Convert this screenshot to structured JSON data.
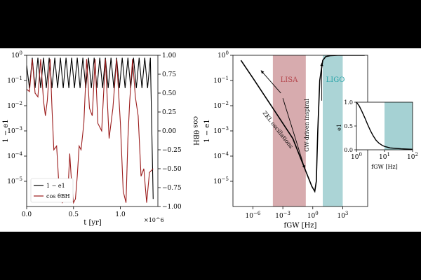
{
  "chart_data": [
    {
      "type": "line",
      "xlabel": "t [yr]",
      "x_multiplier": "×10^6",
      "ylabel_left": "1 − e1",
      "ylabel_right": "cos θBH",
      "xlim": [
        0,
        1.4
      ],
      "ylim_left_log10": [
        -6,
        0
      ],
      "ylim_right": [
        -1.0,
        1.0
      ],
      "x_ticks": [
        "0.0",
        "0.5",
        "1.0"
      ],
      "y_ticks_left": [
        "10^0",
        "10^-1",
        "10^-2",
        "10^-3",
        "10^-4",
        "10^-5"
      ],
      "y_ticks_right": [
        "1.00",
        "0.75",
        "0.50",
        "0.25",
        "0.00",
        "−0.25",
        "−0.50",
        "−0.75",
        "−1.00"
      ],
      "legend_position": "lower-left",
      "series": [
        {
          "name": "1 − e1",
          "color": "#000000",
          "axis": "left-log",
          "x": [
            0.0,
            0.03,
            0.06,
            0.09,
            0.12,
            0.15,
            0.18,
            0.21,
            0.24,
            0.27,
            0.3,
            0.33,
            0.36,
            0.39,
            0.42,
            0.45,
            0.48,
            0.51,
            0.54,
            0.57,
            0.6,
            0.63,
            0.66,
            0.69,
            0.72,
            0.75,
            0.78,
            0.81,
            0.84,
            0.87,
            0.9,
            0.93,
            0.96,
            0.99,
            1.02,
            1.05,
            1.08,
            1.11,
            1.14,
            1.17,
            1.2,
            1.23,
            1.26,
            1.29,
            1.32,
            1.35
          ],
          "log10_y": [
            -0.4,
            -1.3,
            -0.1,
            -1.3,
            -0.1,
            -1.3,
            -0.1,
            -1.3,
            -0.1,
            -1.3,
            -0.1,
            -1.3,
            -0.1,
            -1.3,
            -0.1,
            -1.3,
            -0.1,
            -1.3,
            -0.1,
            -1.3,
            -0.1,
            -1.3,
            -0.1,
            -1.3,
            -0.1,
            -1.3,
            -0.1,
            -1.3,
            -0.1,
            -1.3,
            -0.1,
            -1.3,
            -0.1,
            -1.3,
            -0.1,
            -1.3,
            -0.1,
            -1.3,
            -0.1,
            -1.3,
            -0.1,
            -1.3,
            -0.1,
            -1.3,
            -0.1,
            -5.7
          ]
        },
        {
          "name": "cos θBH",
          "color": "#9b1c1c",
          "axis": "right",
          "x": [
            0.0,
            0.03,
            0.06,
            0.09,
            0.12,
            0.15,
            0.18,
            0.2,
            0.22,
            0.25,
            0.27,
            0.29,
            0.32,
            0.35,
            0.38,
            0.41,
            0.44,
            0.46,
            0.48,
            0.5,
            0.52,
            0.54,
            0.56,
            0.58,
            0.61,
            0.64,
            0.67,
            0.7,
            0.73,
            0.76,
            0.8,
            0.84,
            0.88,
            0.92,
            0.96,
            1.0,
            1.03,
            1.06,
            1.08,
            1.1,
            1.13,
            1.16,
            1.19,
            1.22,
            1.25,
            1.28,
            1.31,
            1.35
          ],
          "y": [
            0.55,
            0.52,
            0.95,
            0.5,
            0.45,
            0.95,
            0.4,
            0.2,
            0.4,
            0.95,
            0.3,
            -0.25,
            -0.2,
            -0.85,
            -0.95,
            -0.9,
            -0.8,
            -0.3,
            -0.7,
            -0.95,
            -0.9,
            -0.6,
            -0.2,
            -0.25,
            0.1,
            0.95,
            0.3,
            0.2,
            0.95,
            0.1,
            0.0,
            0.95,
            -0.1,
            0.3,
            0.95,
            0.1,
            -0.8,
            -0.95,
            -0.1,
            0.4,
            0.95,
            0.45,
            0.2,
            -0.6,
            -0.5,
            -0.95,
            -0.55,
            -0.5
          ]
        }
      ]
    },
    {
      "type": "line",
      "xlabel": "fGW [Hz]",
      "ylabel": "1 − e1",
      "xlim_log10": [
        -8,
        5.5
      ],
      "ylim_log10": [
        -6,
        0
      ],
      "x_ticks": [
        "10^-6",
        "10^-3",
        "10^0",
        "10^3"
      ],
      "y_ticks": [
        "10^0",
        "10^-1",
        "10^-2",
        "10^-3",
        "10^-4",
        "10^-5"
      ],
      "bands": [
        {
          "name": "LISA",
          "color": "#c98f93",
          "text_color": "#b4444b",
          "log10_x": [
            -4,
            -0.7
          ]
        },
        {
          "name": "LIGO",
          "color": "#8fc5c8",
          "text_color": "#2aa3a8",
          "log10_x": [
            1,
            3
          ]
        }
      ],
      "annotations": [
        "ZKL oscillations",
        "GW-driven inspiral"
      ],
      "series": [
        {
          "name": "1 − e1 vs fGW",
          "color": "#000000",
          "log10_x": [
            -7.2,
            -6.0,
            -4.0,
            -2.0,
            -0.8,
            -0.1,
            0.2,
            0.35,
            0.5,
            0.7,
            1.0,
            1.3,
            1.8,
            2.5,
            3.5,
            4.5,
            5.2
          ],
          "log10_y": [
            -0.2,
            -0.9,
            -2.1,
            -3.3,
            -4.5,
            -5.2,
            -5.4,
            -5.0,
            -3.0,
            -1.0,
            -0.2,
            -0.05,
            -0.01,
            0.0,
            0.0,
            0.0,
            0.0
          ]
        }
      ],
      "inset": {
        "type": "line",
        "xlabel": "fGW [Hz]",
        "ylabel": "e1",
        "xlim_log10": [
          0,
          2
        ],
        "ylim": [
          0,
          1
        ],
        "x_ticks": [
          "10^0",
          "10^1",
          "10^2"
        ],
        "y_ticks": [
          "0.0",
          "0.5",
          "1.0"
        ],
        "band": {
          "name": "LIGO",
          "color": "#8fc5c8",
          "log10_x": [
            1,
            2
          ]
        },
        "series": {
          "log10_x": [
            0.0,
            0.1,
            0.2,
            0.3,
            0.4,
            0.5,
            0.6,
            0.7,
            0.8,
            0.9,
            1.0,
            1.2,
            1.4,
            1.6,
            1.8,
            2.0
          ],
          "y": [
            1.0,
            0.92,
            0.8,
            0.67,
            0.53,
            0.4,
            0.29,
            0.2,
            0.14,
            0.1,
            0.07,
            0.04,
            0.03,
            0.02,
            0.015,
            0.01
          ]
        }
      }
    }
  ]
}
